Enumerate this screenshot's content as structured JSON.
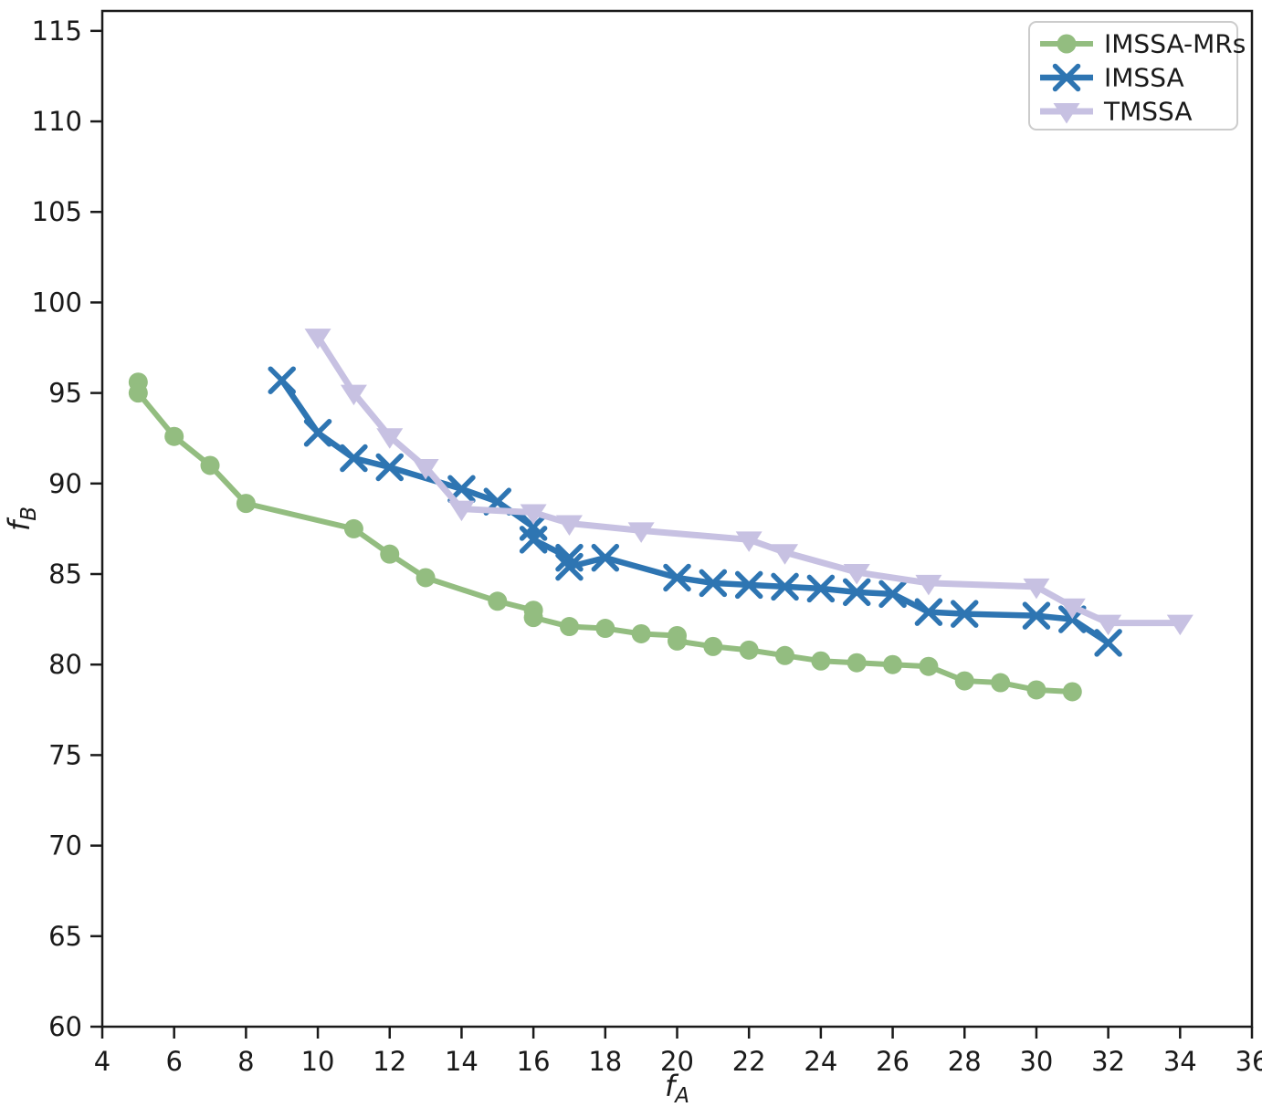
{
  "figure": {
    "background": "#ffffff",
    "spine_color": "#1a1a1a",
    "legend_border_color": "#cccccc"
  },
  "chart_data": {
    "type": "line",
    "title": "",
    "xlabel": "f_A",
    "ylabel": "f_B",
    "xlim": [
      4,
      36
    ],
    "ylim": [
      60,
      116.1
    ],
    "x_ticks": [
      4,
      6,
      8,
      10,
      12,
      14,
      16,
      18,
      20,
      22,
      24,
      26,
      28,
      30,
      32,
      34,
      36
    ],
    "y_ticks": [
      60,
      65,
      70,
      75,
      80,
      85,
      90,
      95,
      100,
      105,
      110,
      115
    ],
    "grid": false,
    "legend": {
      "position": "upper right",
      "items": [
        "IMSSA-MRs",
        "IMSSA",
        "TMSSA"
      ]
    },
    "series": [
      {
        "name": "IMSSA-MRs",
        "color": "#93bd80",
        "marker": "circle",
        "line_width": 6,
        "points": [
          [
            5,
            95.6
          ],
          [
            5,
            95.0
          ],
          [
            6,
            92.6
          ],
          [
            7,
            91.0
          ],
          [
            8,
            88.9
          ],
          [
            11,
            87.5
          ],
          [
            12,
            86.1
          ],
          [
            13,
            84.8
          ],
          [
            15,
            83.5
          ],
          [
            16,
            83.0
          ],
          [
            16,
            82.6
          ],
          [
            17,
            82.1
          ],
          [
            18,
            82.0
          ],
          [
            19,
            81.7
          ],
          [
            20,
            81.6
          ],
          [
            20,
            81.3
          ],
          [
            21,
            81.0
          ],
          [
            22,
            80.8
          ],
          [
            23,
            80.5
          ],
          [
            24,
            80.2
          ],
          [
            25,
            80.1
          ],
          [
            26,
            80.0
          ],
          [
            27,
            79.9
          ],
          [
            28,
            79.1
          ],
          [
            29,
            79.0
          ],
          [
            30,
            78.6
          ],
          [
            31,
            78.5
          ]
        ]
      },
      {
        "name": "IMSSA",
        "color": "#2e75b2",
        "marker": "x",
        "line_width": 6.5,
        "points": [
          [
            9,
            95.7
          ],
          [
            10,
            92.8
          ],
          [
            11,
            91.4
          ],
          [
            12,
            90.9
          ],
          [
            14,
            89.7
          ],
          [
            15,
            89.0
          ],
          [
            16,
            87.6
          ],
          [
            16,
            86.9
          ],
          [
            17,
            85.9
          ],
          [
            17,
            85.4
          ],
          [
            18,
            85.9
          ],
          [
            20,
            84.8
          ],
          [
            21,
            84.5
          ],
          [
            22,
            84.4
          ],
          [
            23,
            84.3
          ],
          [
            24,
            84.2
          ],
          [
            25,
            84.0
          ],
          [
            26,
            83.9
          ],
          [
            27,
            82.9
          ],
          [
            28,
            82.8
          ],
          [
            30,
            82.7
          ],
          [
            31,
            82.5
          ],
          [
            32,
            81.2
          ]
        ]
      },
      {
        "name": "TMSSA",
        "color": "#c7c1e2",
        "marker": "triangle-down",
        "line_width": 7,
        "points": [
          [
            10,
            98.1
          ],
          [
            11,
            95.0
          ],
          [
            12,
            92.6
          ],
          [
            13,
            90.9
          ],
          [
            14,
            88.6
          ],
          [
            16,
            88.4
          ],
          [
            17,
            87.8
          ],
          [
            19,
            87.4
          ],
          [
            22,
            86.9
          ],
          [
            23,
            86.2
          ],
          [
            25,
            85.1
          ],
          [
            27,
            84.5
          ],
          [
            30,
            84.3
          ],
          [
            31,
            83.2
          ],
          [
            32,
            82.3
          ],
          [
            34,
            82.3
          ]
        ]
      }
    ]
  }
}
